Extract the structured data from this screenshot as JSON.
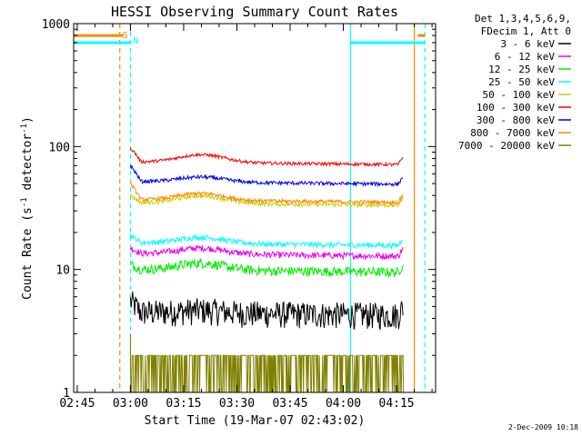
{
  "chart_data": {
    "type": "line",
    "title": "HESSI Observing Summary Count Rates",
    "xlabel": "Start Time (19-Mar-07 02:43:02)",
    "ylabel_main": "Count Rate (s",
    "ylabel_sup1": "-1",
    "ylabel_mid": " detector",
    "ylabel_sup2": "-1",
    "ylabel_end": ")",
    "yscale": "log",
    "ylim": [
      1,
      1000
    ],
    "xlim_minutes": [
      -1,
      101
    ],
    "x_tick_labels": [
      "02:45",
      "03:00",
      "03:15",
      "03:30",
      "03:45",
      "04:00",
      "04:15"
    ],
    "x_tick_minutes": [
      0,
      15,
      30,
      45,
      60,
      75,
      90
    ],
    "y_tick_labels": [
      "1",
      "10",
      "100",
      "1000"
    ],
    "y_tick_values": [
      1,
      10,
      100,
      1000
    ],
    "legend_header": [
      "Det 1,3,4,5,6,9,",
      "FDecim 1, Att 0"
    ],
    "legend_position": "right",
    "series": [
      {
        "name": "3 - 6 keV",
        "color": "#000000",
        "base": 4.5,
        "hump": 0.05,
        "noise": 0.25,
        "start": 5.5
      },
      {
        "name": "6 - 12 keV",
        "color": "#ee00ee",
        "base": 13.5,
        "hump": 0.12,
        "noise": 0.06,
        "start": 15
      },
      {
        "name": "12 - 25 keV",
        "color": "#00ee00",
        "base": 10,
        "hump": 0.14,
        "noise": 0.09,
        "start": 11
      },
      {
        "name": "25 - 50 keV",
        "color": "#00ffff",
        "base": 16.5,
        "hump": 0.12,
        "noise": 0.05,
        "start": 19
      },
      {
        "name": "50 - 100 keV",
        "color": "#cccc00",
        "base": 35,
        "hump": 0.15,
        "noise": 0.04,
        "start": 40
      },
      {
        "name": "100 - 300 keV",
        "color": "#ff0000",
        "base": 75,
        "hump": 0.16,
        "noise": 0.03,
        "start": 98
      },
      {
        "name": "300 - 800 keV",
        "color": "#0000ee",
        "base": 52,
        "hump": 0.1,
        "noise": 0.035,
        "start": 70
      },
      {
        "name": "800 - 7000 keV",
        "color": "#ff8800",
        "base": 37,
        "hump": 0.14,
        "noise": 0.035,
        "start": 50
      },
      {
        "name": "7000 - 20000 keV",
        "color": "#808000",
        "base": 2,
        "hump": 0,
        "noise": 0,
        "start": 2
      }
    ],
    "data_range_minutes": [
      15,
      92
    ],
    "vertical_markers": [
      {
        "label": "S",
        "minute": 12,
        "color": "#ff8800",
        "style": "dashed"
      },
      {
        "label": "N",
        "minute": 15,
        "color": "#00ffff",
        "style": "dashed"
      },
      {
        "label": "",
        "minute": 77,
        "color": "#00ffff",
        "style": "solid"
      },
      {
        "label": "",
        "minute": 95,
        "color": "#ff8800",
        "style": "solid"
      },
      {
        "label": "",
        "minute": 98,
        "color": "#00ffff",
        "style": "dashed"
      }
    ],
    "status_bars": [
      {
        "color": "#ff8800",
        "y": 800,
        "from": -1,
        "to": 13
      },
      {
        "color": "#00ffff",
        "y": 700,
        "from": -1,
        "to": 15
      },
      {
        "color": "#ff8800",
        "y": 800,
        "from": 96,
        "to": 98
      },
      {
        "color": "#00ffff",
        "y": 700,
        "from": 77,
        "to": 98
      }
    ],
    "grid": false
  },
  "footer": {
    "date_stamp": "2-Dec-2009 10:18"
  }
}
